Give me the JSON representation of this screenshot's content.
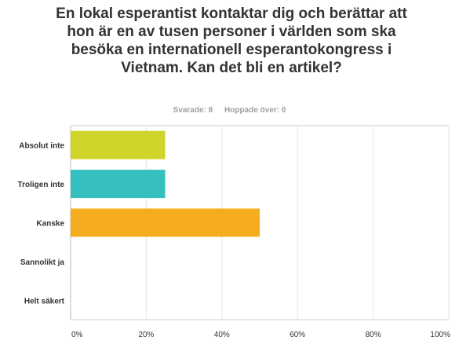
{
  "question": "En lokal esperantist kontaktar dig och berättar att hon är en av tusen personer i världen som ska besöka en internationell esperantokongress i Vietnam. Kan det bli en artikel?",
  "stats": {
    "answered": "Svarade: 8",
    "skipped": "Hoppade över: 0"
  },
  "chart_data": {
    "type": "bar",
    "orientation": "horizontal",
    "categories": [
      "Absolut inte",
      "Troligen inte",
      "Kanske",
      "Sannolikt ja",
      "Helt säkert"
    ],
    "values": [
      25,
      25,
      50,
      0,
      0
    ],
    "colors": [
      "#cfd42a",
      "#36bfbf",
      "#f5ad1f",
      "#8e44ad",
      "#e74c3c"
    ],
    "xlim": [
      0,
      100
    ],
    "ticks": [
      0,
      20,
      40,
      60,
      80,
      100
    ],
    "tick_labels": [
      "0%",
      "20%",
      "40%",
      "60%",
      "80%",
      "100%"
    ],
    "grid": true,
    "xlabel": "",
    "ylabel": ""
  }
}
